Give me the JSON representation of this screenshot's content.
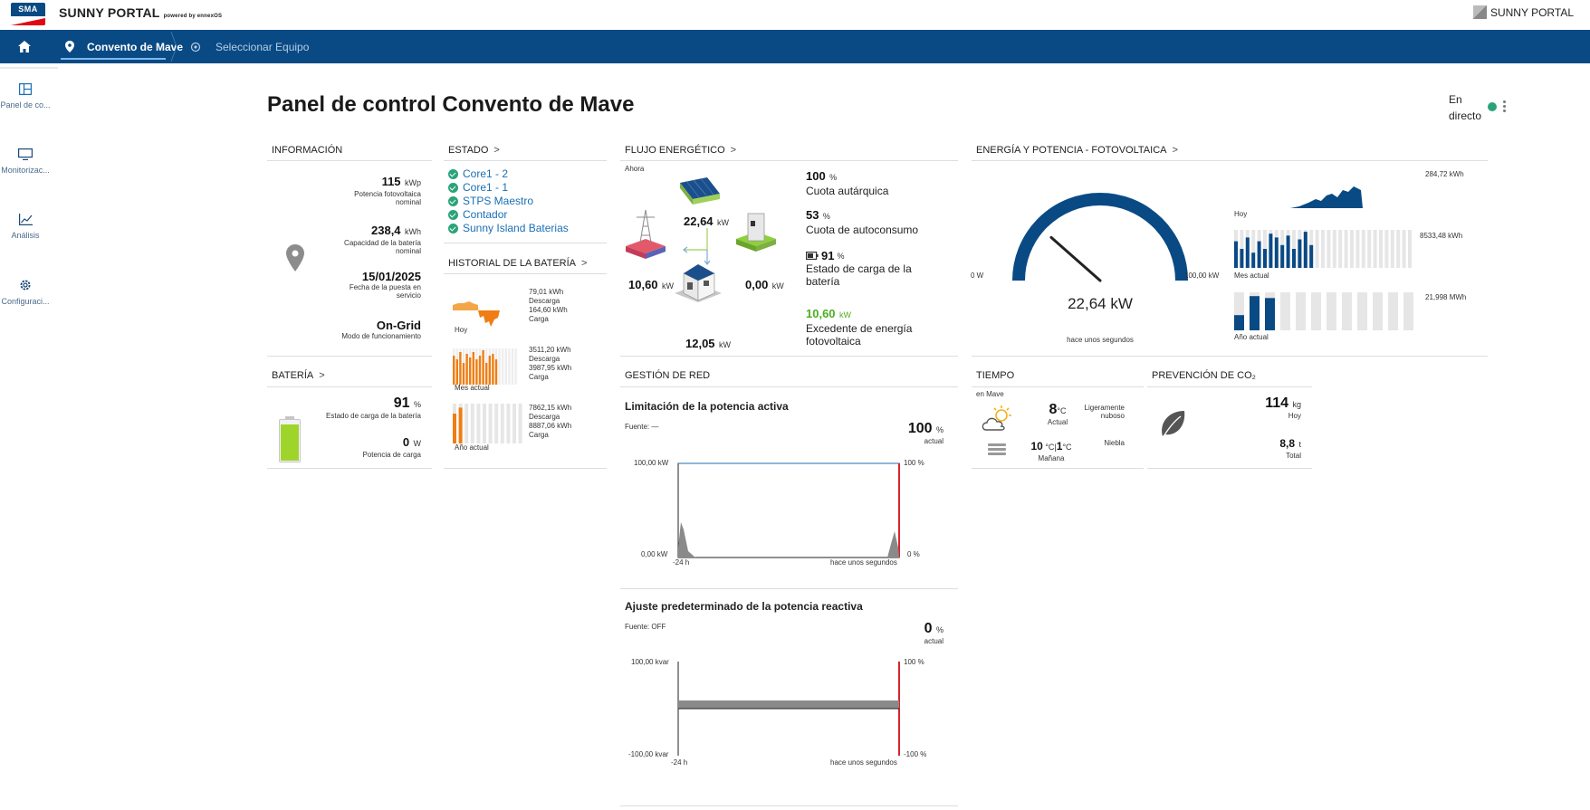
{
  "header": {
    "logo_text": "SMA",
    "brand": "SUNNY PORTAL",
    "brand_sub": "powered by ennexOS",
    "brand_right": "SUNNY PORTAL"
  },
  "nav": {
    "plant": "Convento de Mave",
    "select_device": "Seleccionar Equipo"
  },
  "sidebar": {
    "items": [
      {
        "label": "Panel de co..."
      },
      {
        "label": "Monitorizac..."
      },
      {
        "label": "Análisis"
      },
      {
        "label": "Configuraci..."
      }
    ]
  },
  "page": {
    "title": "Panel de control Convento de Mave",
    "live_line1": "En",
    "live_line2": "directo"
  },
  "info": {
    "title": "INFORMACIÓN",
    "pv_value": "115",
    "pv_unit": "kWp",
    "pv_label1": "Potencia fotovoltaica",
    "pv_label2": "nominal",
    "bat_value": "238,4",
    "bat_unit": "kWh",
    "bat_label1": "Capacidad de la batería",
    "bat_label2": "nominal",
    "date_value": "15/01/2025",
    "date_label1": "Fecha de la puesta en",
    "date_label2": "servicio",
    "mode_value": "On-Grid",
    "mode_label": "Modo de funcionamiento"
  },
  "estado": {
    "title": "ESTADO",
    "items": [
      "Core1 - 2",
      "Core1 - 1",
      "STPS Maestro",
      "Contador",
      "Sunny Island Baterias"
    ]
  },
  "battery_history": {
    "title": "HISTORIAL DE LA BATERÍA",
    "rows": [
      {
        "label": "Hoy",
        "v1": "79,01 kWh",
        "l1": "Descarga",
        "v2": "164,60 kWh",
        "l2": "Carga"
      },
      {
        "label": "Mes actual",
        "v1": "3511,20 kWh",
        "l1": "Descarga",
        "v2": "3987,95 kWh",
        "l2": "Carga"
      },
      {
        "label": "Año actual",
        "v1": "7862,15 kWh",
        "l1": "Descarga",
        "v2": "8887,06 kWh",
        "l2": "Carga"
      }
    ]
  },
  "flow": {
    "title": "FLUJO ENERGÉTICO",
    "now": "Ahora",
    "pv": "22,64",
    "pv_unit": "kW",
    "grid": "10,60",
    "grid_unit": "kW",
    "battery": "0,00",
    "battery_unit": "kW",
    "house": "12,05",
    "house_unit": "kW",
    "autarky_value": "100",
    "autarky_unit": "%",
    "autarky_label": "Cuota autárquica",
    "selfcons_value": "53",
    "selfcons_unit": "%",
    "selfcons_label": "Cuota de autoconsumo",
    "soc_value": "91",
    "soc_unit": "%",
    "soc_label1": "Estado de carga de la",
    "soc_label2": "batería",
    "surplus_value": "10,60",
    "surplus_unit": "kW",
    "surplus_label1": "Excedente de energía",
    "surplus_label2": "fotovoltaica"
  },
  "pv_energy": {
    "title": "ENERGÍA Y POTENCIA - FOTOVOLTAICA",
    "gauge_min": "0 W",
    "gauge_max": "100,00 kW",
    "gauge_value": "22,64 kW",
    "gauge_fraction": 0.23,
    "gauge_time": "hace unos segundos",
    "today_value": "284,72 kWh",
    "today_label": "Hoy",
    "month_value": "8533,48 kWh",
    "month_label": "Mes actual",
    "year_value": "21,998 MWh",
    "year_label": "Año actual"
  },
  "battery": {
    "title": "BATERÍA",
    "soc_value": "91",
    "soc_unit": "%",
    "soc_label": "Estado de carga de la batería",
    "power_value": "0",
    "power_unit": "W",
    "power_label": "Potencia de carga",
    "fill_fraction": 0.91
  },
  "grid": {
    "title": "GESTIÓN DE RED",
    "active": {
      "title": "Limitación de la potencia activa",
      "source": "Fuente: —",
      "value": "100",
      "unit": "%",
      "sub": "actual",
      "y_top": "100,00 kW",
      "y_bottom": "0,00 kW",
      "r_top": "100 %",
      "r_bottom": "0 %",
      "x_start": "-24 h",
      "x_end": "hace unos segundos"
    },
    "reactive": {
      "title": "Ajuste predeterminado de la potencia reactiva",
      "source": "Fuente: OFF",
      "value": "0",
      "unit": "%",
      "sub": "actual",
      "y_top": "100,00 kvar",
      "y_bottom": "-100,00 kvar",
      "r_top": "100 %",
      "r_bottom": "-100 %",
      "x_start": "-24 h",
      "x_end": "hace unos segundos"
    }
  },
  "weather": {
    "title": "TIEMPO",
    "location": "en Mave",
    "today_temp": "8",
    "today_unit": "°C",
    "today_label": "Actual",
    "today_desc1": "Ligeramente",
    "today_desc2": "nuboso",
    "tomorrow_max": "10",
    "tomorrow_min": "1",
    "tomorrow_unit": "°C",
    "tomorrow_label": "Mañana",
    "tomorrow_desc": "Niebla"
  },
  "co2": {
    "title": "PREVENCIÓN DE CO₂",
    "today_value": "114",
    "today_unit": "kg",
    "today_label": "Hoy",
    "total_value": "8,8",
    "total_unit": "t",
    "total_label": "Total"
  },
  "colors": {
    "brand": "#0a4a84",
    "accent": "#1a6fb5",
    "ok": "#2ba37a",
    "battery": "#9fd52b",
    "orange": "#f07d13",
    "green_text": "#4caf1f"
  }
}
